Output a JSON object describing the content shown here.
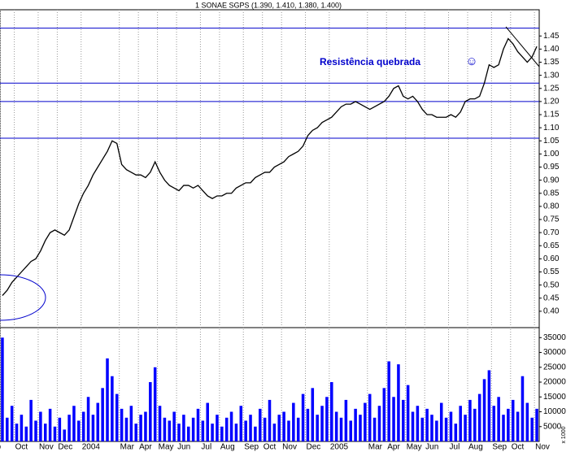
{
  "chart_data": [
    {
      "type": "line",
      "title": "1 SONAE SGPS (1.390, 1.410, 1.380, 1.400)",
      "color": "#000000",
      "categories": [
        "p",
        null,
        null,
        "Oct",
        null,
        null,
        null,
        null,
        "Nov",
        null,
        null,
        null,
        "Dec",
        null,
        null,
        null,
        null,
        "2004",
        null,
        null,
        null,
        null,
        null,
        null,
        null,
        "Mar",
        null,
        null,
        null,
        "Apr",
        null,
        null,
        null,
        "May",
        null,
        null,
        null,
        "Jun",
        null,
        null,
        null,
        null,
        "Jul",
        null,
        null,
        null,
        "Aug",
        null,
        null,
        null,
        null,
        "Sep",
        null,
        null,
        null,
        "Oct",
        null,
        null,
        null,
        "Nov",
        null,
        null,
        null,
        null,
        "Dec",
        null,
        null,
        null,
        null,
        "2005",
        null,
        null,
        null,
        null,
        null,
        null,
        null,
        "Mar",
        null,
        null,
        null,
        "Apr",
        null,
        null,
        null,
        "May",
        null,
        null,
        null,
        "Jun",
        null,
        null,
        null,
        null,
        "Jul",
        null,
        null,
        null,
        "Aug",
        null,
        null,
        null,
        null,
        "Sep",
        null,
        null,
        null,
        "Oct",
        null,
        null,
        null,
        null,
        "Nov"
      ],
      "values": [
        0.46,
        0.48,
        0.51,
        0.53,
        0.55,
        0.57,
        0.59,
        0.6,
        0.63,
        0.67,
        0.7,
        0.71,
        0.7,
        0.69,
        0.71,
        0.76,
        0.81,
        0.85,
        0.88,
        0.92,
        0.95,
        0.98,
        1.01,
        1.05,
        1.04,
        0.96,
        0.94,
        0.93,
        0.92,
        0.92,
        0.91,
        0.93,
        0.97,
        0.93,
        0.9,
        0.88,
        0.87,
        0.86,
        0.88,
        0.88,
        0.87,
        0.88,
        0.86,
        0.84,
        0.83,
        0.84,
        0.84,
        0.85,
        0.85,
        0.87,
        0.88,
        0.89,
        0.89,
        0.91,
        0.92,
        0.93,
        0.93,
        0.95,
        0.96,
        0.97,
        0.99,
        1.0,
        1.01,
        1.03,
        1.07,
        1.09,
        1.1,
        1.12,
        1.13,
        1.14,
        1.16,
        1.18,
        1.19,
        1.19,
        1.2,
        1.19,
        1.18,
        1.17,
        1.18,
        1.19,
        1.2,
        1.22,
        1.25,
        1.26,
        1.22,
        1.21,
        1.22,
        1.2,
        1.17,
        1.15,
        1.15,
        1.14,
        1.14,
        1.14,
        1.15,
        1.14,
        1.16,
        1.2,
        1.21,
        1.21,
        1.22,
        1.27,
        1.34,
        1.33,
        1.34,
        1.4,
        1.44,
        1.42,
        1.39,
        1.37,
        1.35,
        1.37,
        1.41
      ],
      "hlines": [
        1.48,
        1.27,
        1.2,
        1.06
      ],
      "hline_color": "#0000cc",
      "ylim": [
        0.35,
        1.55
      ],
      "yticks": [
        {
          "value": 0.4,
          "label": "0.40"
        },
        {
          "value": 0.45,
          "label": "0.45"
        },
        {
          "value": 0.5,
          "label": "0.50"
        },
        {
          "value": 0.55,
          "label": "0.55"
        },
        {
          "value": 0.6,
          "label": "0.60"
        },
        {
          "value": 0.65,
          "label": "0.65"
        },
        {
          "value": 0.7,
          "label": "0.70"
        },
        {
          "value": 0.75,
          "label": "0.75"
        },
        {
          "value": 0.8,
          "label": "0.80"
        },
        {
          "value": 0.85,
          "label": "0.85"
        },
        {
          "value": 0.9,
          "label": "0.90"
        },
        {
          "value": 0.95,
          "label": "0.95"
        },
        {
          "value": 1.0,
          "label": "1.00"
        },
        {
          "value": 1.05,
          "label": "1.05"
        },
        {
          "value": 1.1,
          "label": "1.10"
        },
        {
          "value": 1.15,
          "label": "1.15"
        },
        {
          "value": 1.2,
          "label": "1.20"
        },
        {
          "value": 1.25,
          "label": "1.25"
        },
        {
          "value": 1.3,
          "label": "1.30"
        },
        {
          "value": 1.35,
          "label": "1.35"
        },
        {
          "value": 1.4,
          "label": "1.40"
        },
        {
          "value": 1.45,
          "label": "1.45"
        }
      ],
      "annotations": [
        "Resistência quebrada",
        "☺"
      ],
      "grid": true
    },
    {
      "type": "bar",
      "color": "#0000ff",
      "unit_label": "x 1000",
      "values": [
        35000,
        8000,
        12000,
        6000,
        9000,
        5000,
        14000,
        7000,
        10000,
        6000,
        11000,
        5000,
        8000,
        4000,
        9000,
        12000,
        7000,
        10000,
        15000,
        9000,
        13000,
        18000,
        28000,
        22000,
        16000,
        11000,
        8000,
        12000,
        6000,
        9000,
        10000,
        20000,
        25000,
        12000,
        8000,
        7000,
        10000,
        6000,
        9000,
        5000,
        8000,
        11000,
        7000,
        13000,
        6000,
        9000,
        5000,
        8000,
        10000,
        6000,
        12000,
        7000,
        9000,
        5000,
        11000,
        8000,
        14000,
        6000,
        9000,
        10000,
        7000,
        13000,
        8000,
        16000,
        11000,
        18000,
        9000,
        12000,
        15000,
        20000,
        10000,
        8000,
        14000,
        7000,
        11000,
        9000,
        13000,
        16000,
        8000,
        12000,
        18000,
        27000,
        15000,
        26000,
        14000,
        19000,
        10000,
        12000,
        8000,
        11000,
        9000,
        7000,
        13000,
        8000,
        10000,
        6000,
        12000,
        9000,
        14000,
        11000,
        16000,
        21000,
        24000,
        12000,
        15000,
        9000,
        11000,
        14000,
        10000,
        22000,
        13000,
        8000,
        11000
      ],
      "ylim": [
        0,
        37000
      ],
      "yticks": [
        5000,
        10000,
        15000,
        20000,
        25000,
        30000,
        35000
      ]
    }
  ]
}
